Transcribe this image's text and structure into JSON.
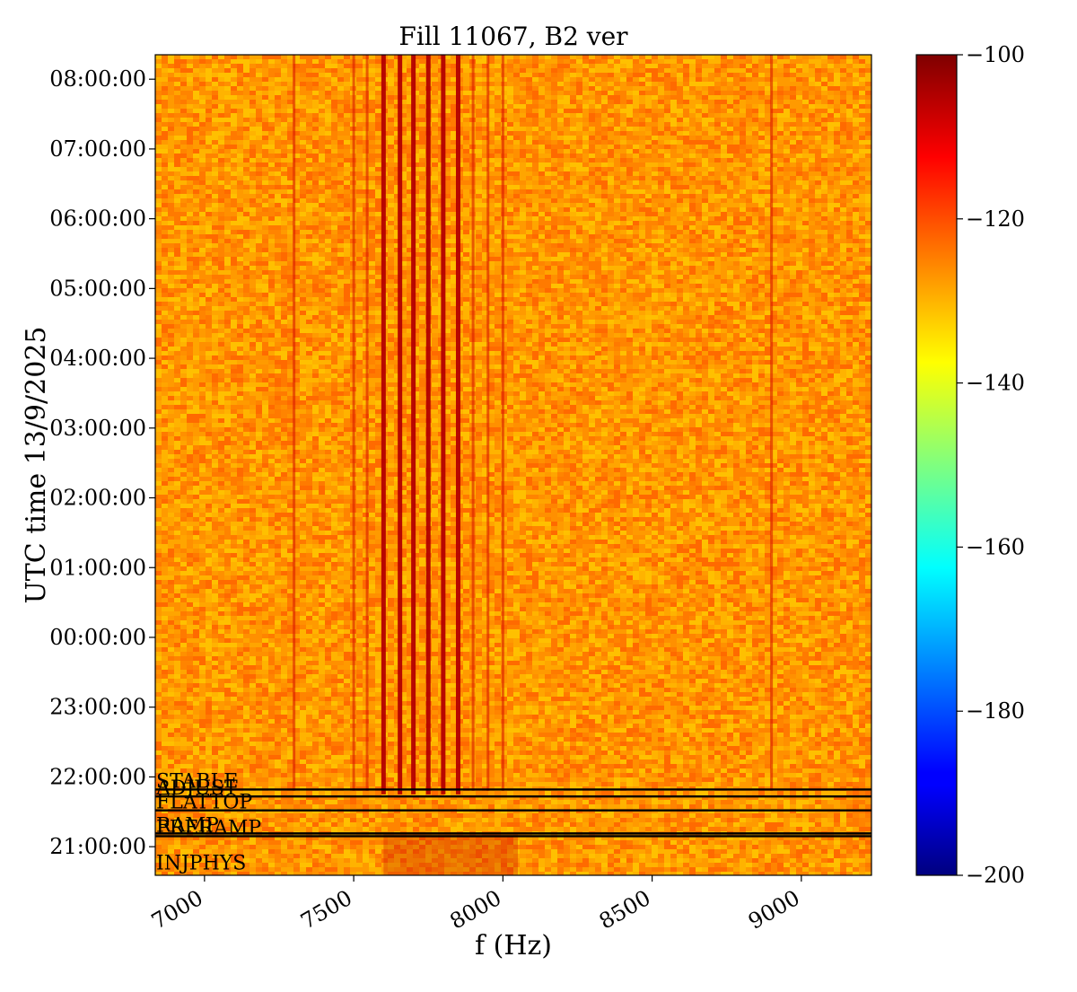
{
  "chart_data": {
    "type": "heatmap",
    "title": "Fill 11067, B2 ver",
    "xlabel": "f (Hz)",
    "ylabel": "UTC time 13/9/2025",
    "xlim": [
      6835,
      9235
    ],
    "ylim_hours_since_20h": [
      0.59,
      12.35
    ],
    "x_ticks": [
      7000,
      7500,
      8000,
      8500,
      9000
    ],
    "y_ticks": [
      {
        "label": "21:00:00",
        "h": 1.0
      },
      {
        "label": "22:00:00",
        "h": 2.0
      },
      {
        "label": "23:00:00",
        "h": 3.0
      },
      {
        "label": "00:00:00",
        "h": 4.0
      },
      {
        "label": "01:00:00",
        "h": 5.0
      },
      {
        "label": "02:00:00",
        "h": 6.0
      },
      {
        "label": "03:00:00",
        "h": 7.0
      },
      {
        "label": "04:00:00",
        "h": 8.0
      },
      {
        "label": "05:00:00",
        "h": 9.0
      },
      {
        "label": "06:00:00",
        "h": 10.0
      },
      {
        "label": "07:00:00",
        "h": 11.0
      },
      {
        "label": "08:00:00",
        "h": 12.0
      }
    ],
    "colorbar": {
      "min": -200,
      "max": -100,
      "ticks": [
        -100,
        -120,
        -140,
        -160,
        -180,
        -200
      ],
      "tick_labels": [
        "−100",
        "−120",
        "−140",
        "−160",
        "−180",
        "−200"
      ],
      "colormap": "jet"
    },
    "background_level_db": -122,
    "strong_lines_hz": [
      7600,
      7655,
      7700,
      7750,
      7800,
      7850
    ],
    "weak_lines_hz": [
      7500,
      7545,
      7900,
      7950,
      8000,
      7300,
      8900
    ],
    "phase_markers": [
      {
        "label": "INJPHYS",
        "h": 0.65
      },
      {
        "label": "PRERAMP",
        "h": 1.15
      },
      {
        "label": "RAMP",
        "h": 1.19
      },
      {
        "label": "FLATTOP",
        "h": 1.52
      },
      {
        "label": "ADJUST",
        "h": 1.72
      },
      {
        "label": "STABLE",
        "h": 1.82
      }
    ],
    "colors": {
      "background": "#ffffff",
      "marker_line": "#000000"
    }
  }
}
